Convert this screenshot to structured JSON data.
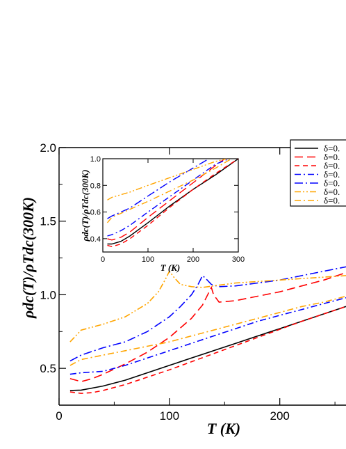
{
  "chart_data": [
    {
      "type": "line",
      "panel": "main",
      "xlabel": "T (K)",
      "ylabel": "ρdc(T)/ρTdc(300K)",
      "xlim": [
        0,
        260
      ],
      "ylim": [
        0.25,
        2.0
      ],
      "xticks": [
        0,
        100,
        200
      ],
      "yticks": [
        0.5,
        1.0,
        1.5,
        2.0
      ],
      "xtick_labels": [
        "0",
        "100",
        "200"
      ],
      "ytick_labels": [
        "0.5",
        "1.0",
        "1.5",
        "2.0"
      ],
      "grid": false,
      "legend": "top-right",
      "series": [
        {
          "name": "δ=0.",
          "color": "#000000",
          "dash": "solid",
          "x": [
            10,
            20,
            40,
            60,
            80,
            100,
            120,
            140,
            160,
            180,
            200,
            220,
            240,
            260
          ],
          "y": [
            0.35,
            0.352,
            0.38,
            0.42,
            0.47,
            0.52,
            0.57,
            0.62,
            0.67,
            0.72,
            0.77,
            0.82,
            0.87,
            0.92
          ]
        },
        {
          "name": "δ=0.",
          "color": "#ff0000",
          "dash": "longdash",
          "x": [
            10,
            20,
            30,
            40,
            60,
            80,
            100,
            120,
            130,
            138,
            140,
            145,
            160,
            180,
            200,
            220,
            240,
            260
          ],
          "y": [
            0.43,
            0.41,
            0.43,
            0.46,
            0.53,
            0.61,
            0.71,
            0.84,
            0.93,
            1.05,
            1.0,
            0.95,
            0.96,
            0.99,
            1.02,
            1.06,
            1.1,
            1.15
          ]
        },
        {
          "name": "δ=0.",
          "color": "#ff0000",
          "dash": "dash",
          "x": [
            10,
            20,
            30,
            40,
            60,
            80,
            100,
            120,
            140,
            160,
            180,
            200,
            220,
            240,
            260
          ],
          "y": [
            0.34,
            0.33,
            0.335,
            0.35,
            0.39,
            0.44,
            0.49,
            0.545,
            0.6,
            0.655,
            0.71,
            0.765,
            0.82,
            0.87,
            0.92
          ]
        },
        {
          "name": "δ=0.",
          "color": "#0000ff",
          "dash": "dashdot",
          "x": [
            10,
            20,
            40,
            60,
            80,
            100,
            120,
            140,
            160,
            180,
            200,
            220,
            240,
            260
          ],
          "y": [
            0.46,
            0.47,
            0.48,
            0.52,
            0.57,
            0.62,
            0.67,
            0.72,
            0.77,
            0.82,
            0.86,
            0.9,
            0.94,
            0.98
          ]
        },
        {
          "name": "δ=0.",
          "color": "#0000ff",
          "dash": "dashdotlong",
          "x": [
            10,
            20,
            40,
            60,
            80,
            100,
            110,
            120,
            126,
            130,
            133,
            138,
            145,
            160,
            180,
            200,
            220,
            240,
            260
          ],
          "y": [
            0.55,
            0.59,
            0.64,
            0.68,
            0.75,
            0.85,
            0.92,
            1.0,
            1.07,
            1.13,
            1.11,
            1.07,
            1.055,
            1.06,
            1.08,
            1.1,
            1.13,
            1.16,
            1.19
          ]
        },
        {
          "name": "δ=0.",
          "color": "#ffa500",
          "dash": "dashdotdot",
          "x": [
            10,
            20,
            40,
            60,
            80,
            90,
            96,
            100,
            104,
            110,
            120,
            130,
            140,
            150,
            160,
            180,
            200,
            220,
            240,
            260
          ],
          "y": [
            0.68,
            0.76,
            0.8,
            0.85,
            0.94,
            1.02,
            1.1,
            1.16,
            1.12,
            1.07,
            1.055,
            1.05,
            1.06,
            1.07,
            1.08,
            1.09,
            1.1,
            1.11,
            1.12,
            1.13
          ]
        },
        {
          "name": "δ=0.",
          "color": "#ffa500",
          "dash": "dashdot",
          "x": [
            10,
            20,
            40,
            60,
            80,
            100,
            120,
            140,
            160,
            180,
            200,
            220,
            240,
            260
          ],
          "y": [
            0.52,
            0.56,
            0.59,
            0.62,
            0.65,
            0.68,
            0.72,
            0.76,
            0.8,
            0.84,
            0.88,
            0.92,
            0.95,
            0.99
          ]
        }
      ]
    },
    {
      "type": "line",
      "panel": "inset",
      "xlabel": "T (K)",
      "ylabel": "ρdc(T)/ρTdc(300K)",
      "xlim": [
        0,
        300
      ],
      "ylim": [
        0.3,
        1.0
      ],
      "xticks": [
        0,
        100,
        200,
        300
      ],
      "yticks": [
        0.4,
        0.6,
        0.8,
        1.0
      ],
      "xtick_labels": [
        "0",
        "100",
        "200",
        "300"
      ],
      "ytick_labels": [
        "0.4",
        "0.6",
        "0.8",
        "1.0"
      ],
      "series": [
        {
          "color": "#000000",
          "dash": "solid",
          "x": [
            10,
            20,
            40,
            60,
            100,
            150,
            200,
            250,
            300
          ],
          "y": [
            0.36,
            0.36,
            0.38,
            0.42,
            0.52,
            0.65,
            0.77,
            0.88,
            1.0
          ]
        },
        {
          "color": "#ff0000",
          "dash": "longdash",
          "x": [
            10,
            20,
            40,
            60,
            100,
            150,
            200,
            250,
            270
          ],
          "y": [
            0.4,
            0.39,
            0.41,
            0.45,
            0.56,
            0.69,
            0.82,
            0.95,
            1.0
          ]
        },
        {
          "color": "#ff0000",
          "dash": "dash",
          "x": [
            10,
            20,
            40,
            60,
            100,
            150,
            200,
            250,
            300
          ],
          "y": [
            0.35,
            0.34,
            0.36,
            0.4,
            0.5,
            0.64,
            0.77,
            0.89,
            1.0
          ]
        },
        {
          "color": "#0000ff",
          "dash": "dashdot",
          "x": [
            10,
            20,
            40,
            60,
            100,
            150,
            200,
            250,
            280
          ],
          "y": [
            0.42,
            0.43,
            0.46,
            0.5,
            0.6,
            0.72,
            0.84,
            0.96,
            1.0
          ]
        },
        {
          "color": "#0000ff",
          "dash": "dashdotlong",
          "x": [
            10,
            20,
            40,
            60,
            100,
            150,
            200,
            235
          ],
          "y": [
            0.55,
            0.57,
            0.6,
            0.63,
            0.72,
            0.83,
            0.93,
            1.0
          ]
        },
        {
          "color": "#ffa500",
          "dash": "dashdotdot",
          "x": [
            10,
            20,
            40,
            60,
            100,
            150,
            200,
            250,
            275
          ],
          "y": [
            0.69,
            0.71,
            0.73,
            0.75,
            0.8,
            0.86,
            0.92,
            0.98,
            1.0
          ]
        },
        {
          "color": "#ffa500",
          "dash": "dashdot",
          "x": [
            10,
            20,
            40,
            60,
            100,
            150,
            200,
            250,
            285
          ],
          "y": [
            0.52,
            0.56,
            0.59,
            0.62,
            0.68,
            0.76,
            0.84,
            0.93,
            1.0
          ]
        }
      ]
    }
  ]
}
